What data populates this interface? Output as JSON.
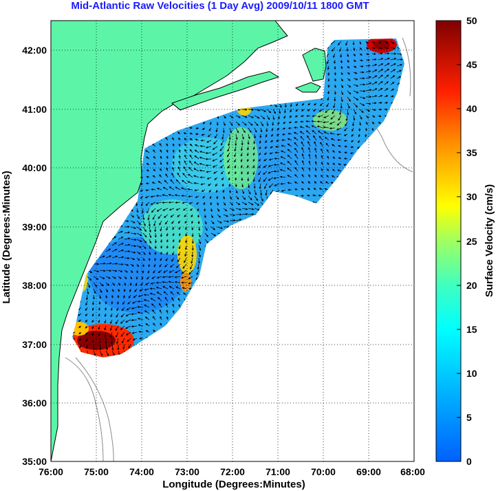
{
  "title": "Mid-Atlantic Raw Velocities (1 Day Avg) 2009/10/11 1800 GMT",
  "map": {
    "xlabel": "Longitude (Degrees:Minutes)",
    "ylabel": "Latitude (Degrees:Minutes)",
    "lon_range": [
      -76,
      -68
    ],
    "lat_range": [
      35,
      42.5
    ],
    "x_ticks": [
      "76:00",
      "75:00",
      "74:00",
      "73:00",
      "72:00",
      "71:00",
      "70:00",
      "69:00",
      "68:00"
    ],
    "y_ticks": [
      "35:00",
      "36:00",
      "37:00",
      "38:00",
      "39:00",
      "40:00",
      "41:00",
      "42:00"
    ],
    "land_color": "#5cf5a8",
    "grid": "dotted"
  },
  "colorbar": {
    "label": "Surface Velocity (cm/s)",
    "min": 0,
    "max": 50,
    "ticks": [
      "0",
      "5",
      "10",
      "15",
      "20",
      "25",
      "30",
      "35",
      "40",
      "45",
      "50"
    ],
    "colormap": "jet"
  }
}
